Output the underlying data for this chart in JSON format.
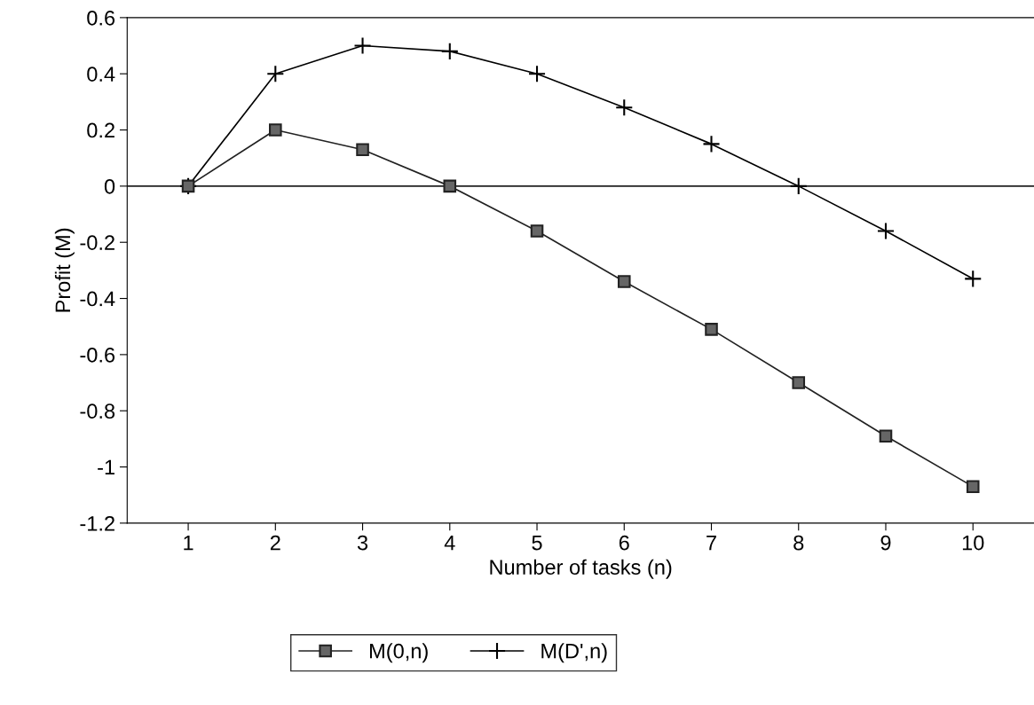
{
  "chart_data": {
    "type": "line",
    "xlabel": "Number of tasks (n)",
    "ylabel": "Profit (M)",
    "categories": [
      "1",
      "2",
      "3",
      "4",
      "5",
      "6",
      "7",
      "8",
      "9",
      "10"
    ],
    "series": [
      {
        "name": "M(0,n)",
        "color": "#222222",
        "marker": "square",
        "values": [
          0,
          0.2,
          0.13,
          0,
          -0.16,
          -0.34,
          -0.51,
          -0.7,
          -0.89,
          -1.07
        ]
      },
      {
        "name": "M(D',n)",
        "color": "#000000",
        "marker": "cross",
        "values": [
          0,
          0.4,
          0.5,
          0.48,
          0.4,
          0.28,
          0.15,
          0,
          -0.16,
          -0.33
        ]
      }
    ],
    "ylim": [
      -1.2,
      0.6
    ],
    "yticks": [
      0.6,
      0.4,
      0.2,
      0,
      -0.2,
      -0.4,
      -0.6,
      -0.8,
      -1,
      -1.2
    ],
    "ref_lines": [
      {
        "axis": "y",
        "value": 0,
        "color": "#222222"
      }
    ],
    "grid": false,
    "legend": "bottom",
    "line_style": "solid"
  }
}
